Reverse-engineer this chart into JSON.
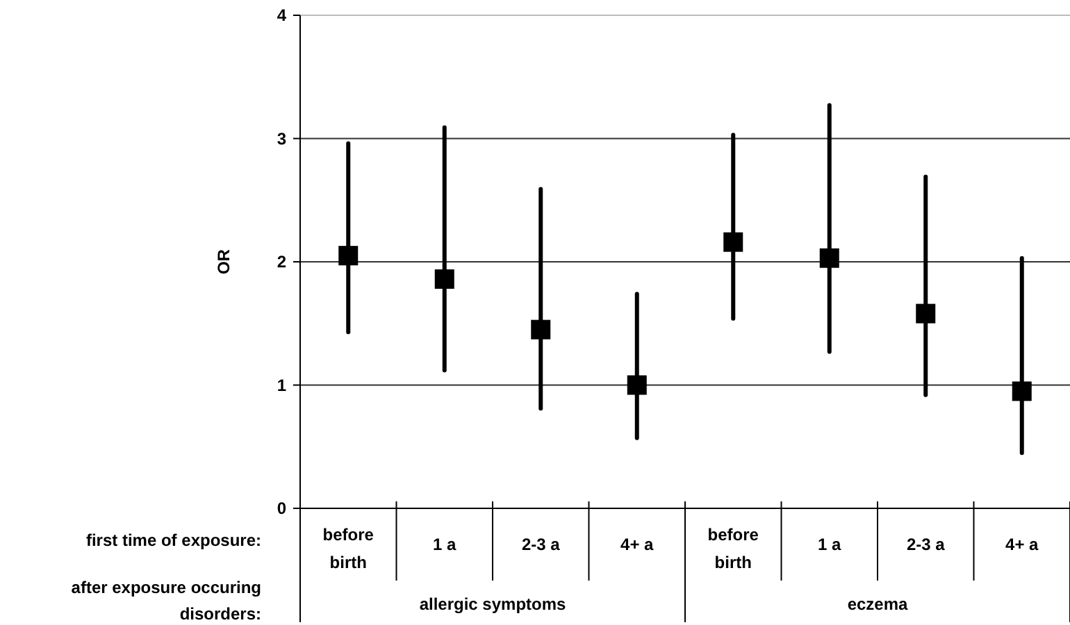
{
  "chart_data": {
    "type": "scatter",
    "ylabel": "OR",
    "categories": [
      "before birth",
      "1 a",
      "2-3 a",
      "4+ a",
      "before birth",
      "1 a",
      "2-3 a",
      "4+ a"
    ],
    "values": [
      2.05,
      1.86,
      1.45,
      1.0,
      2.16,
      2.03,
      1.58,
      0.95
    ],
    "errors": [
      [
        1.43,
        2.96
      ],
      [
        1.12,
        3.09
      ],
      [
        0.81,
        2.59
      ],
      [
        0.57,
        1.74
      ],
      [
        1.54,
        3.03
      ],
      [
        1.27,
        3.27
      ],
      [
        0.92,
        2.69
      ],
      [
        0.45,
        2.03
      ]
    ],
    "color": "#000000",
    "marker": "square",
    "ylim": [
      0,
      4
    ],
    "yticks": [
      0,
      1,
      2,
      3,
      4
    ],
    "grid": "y",
    "annotations": [
      "first time of exposure:",
      "after exposure occuring disorders:",
      "allergic symptoms",
      "eczema"
    ]
  }
}
